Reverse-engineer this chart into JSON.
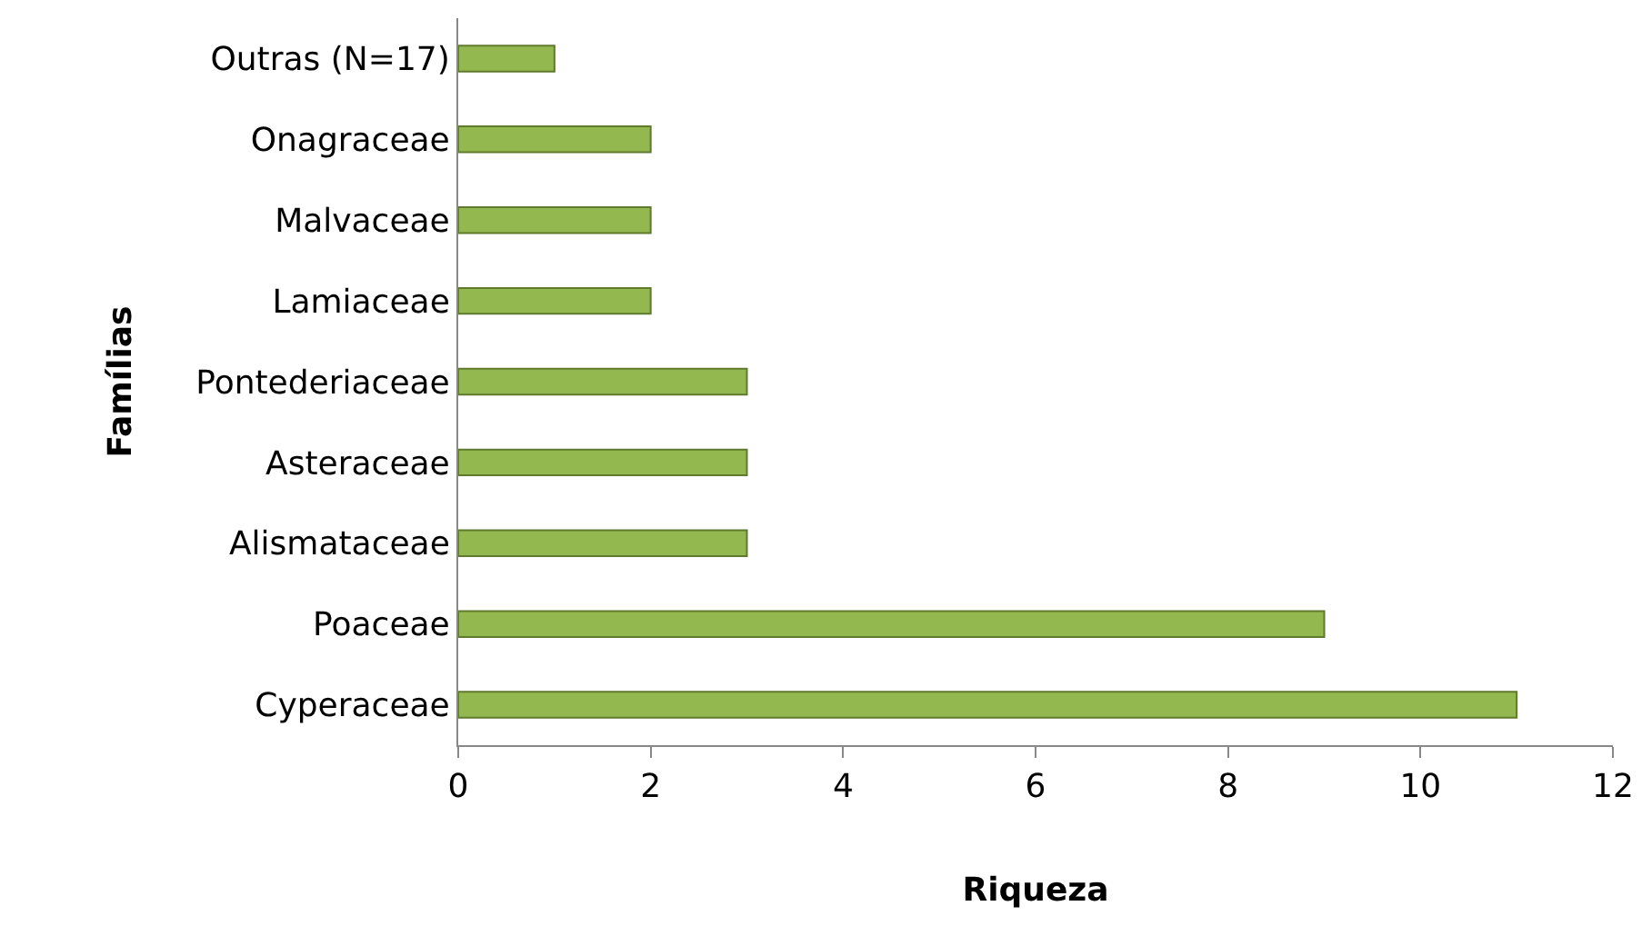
{
  "chart_data": {
    "type": "bar",
    "orientation": "horizontal",
    "xlabel": "Riqueza",
    "ylabel": "Famílias",
    "categories": [
      "Outras (N=17)",
      "Onagraceae",
      "Malvaceae",
      "Lamiaceae",
      "Pontederiaceae",
      "Asteraceae",
      "Alismataceae",
      "Poaceae",
      "Cyperaceae"
    ],
    "values": [
      1,
      2,
      2,
      2,
      3,
      3,
      3,
      9,
      11
    ],
    "color": "#93b850",
    "xlim": [
      0,
      12
    ],
    "xticks": [
      0,
      2,
      4,
      6,
      8,
      10,
      12
    ],
    "grid": false
  }
}
